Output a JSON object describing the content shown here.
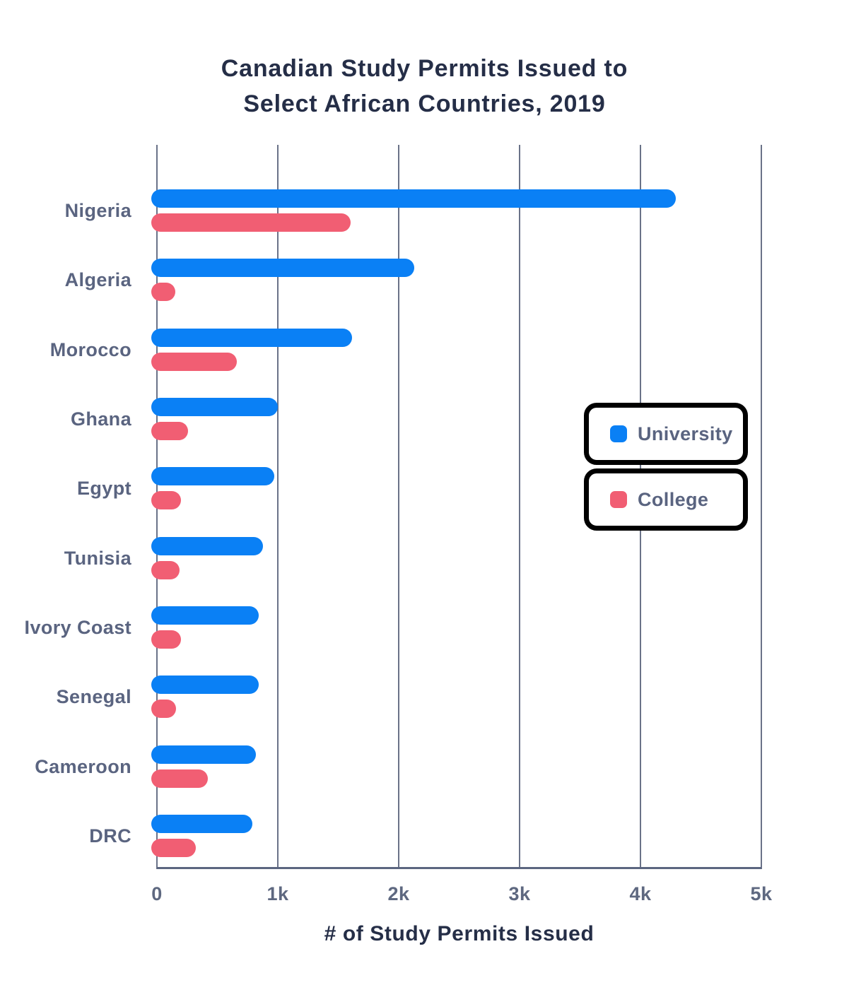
{
  "title": {
    "line1": "Canadian Study Permits Issued to",
    "line2": "Select African Countries, 2019"
  },
  "x_axis": {
    "title": "# of Study Permits Issued",
    "ticks": [
      "0",
      "1k",
      "2k",
      "3k",
      "4k",
      "5k"
    ],
    "max": 5000
  },
  "legend": {
    "items": [
      {
        "label": "University",
        "color": "#0A80F5"
      },
      {
        "label": "College",
        "color": "#F15E73"
      }
    ]
  },
  "colors": {
    "university": "#0A80F5",
    "college": "#F15E73",
    "grid": "#6A7288",
    "axis": "#5C6680",
    "text_dark": "#252E47",
    "text_slate": "#5A6480"
  },
  "chart_data": {
    "type": "bar",
    "orientation": "horizontal",
    "title": "Canadian Study Permits Issued to Select African Countries, 2019",
    "xlabel": "# of Study Permits Issued",
    "xlim": [
      0,
      5000
    ],
    "grid": true,
    "legend_position": "middle-right",
    "categories": [
      "Nigeria",
      "Algeria",
      "Morocco",
      "Ghana",
      "Egypt",
      "Tunisia",
      "Ivory Coast",
      "Senegal",
      "Cameroon",
      "DRC"
    ],
    "series": [
      {
        "name": "University",
        "color": "#0A80F5",
        "values": [
          4290,
          2130,
          1615,
          1000,
          970,
          880,
          840,
          845,
          820,
          790
        ]
      },
      {
        "name": "College",
        "color": "#F15E73",
        "values": [
          1600,
          130,
          660,
          260,
          200,
          190,
          200,
          160,
          420,
          320
        ]
      }
    ]
  }
}
